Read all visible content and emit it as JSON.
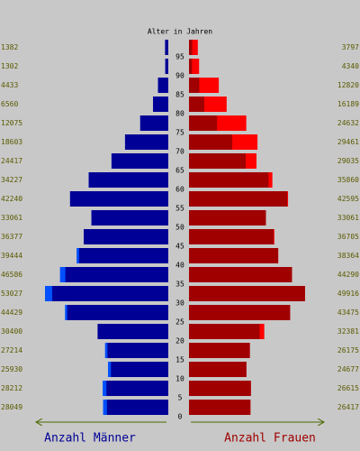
{
  "chart_data": {
    "type": "pyramid",
    "title": "Alter in Jahren",
    "ylim": [
      0,
      100
    ],
    "yticks": [
      0,
      5,
      10,
      15,
      20,
      25,
      30,
      35,
      40,
      45,
      50,
      55,
      60,
      65,
      70,
      75,
      80,
      85,
      90,
      95
    ],
    "xlim": [
      0,
      60000
    ],
    "series": [
      {
        "name": "Anzahl Männer",
        "color": "#000096",
        "excess_color": "#0050ff",
        "values": [
          28049,
          28212,
          25930,
          27214,
          30400,
          44429,
          53027,
          46586,
          39444,
          36377,
          33061,
          42240,
          34227,
          24417,
          18603,
          12075,
          6560,
          4433,
          1302,
          1382
        ]
      },
      {
        "name": "Anzahl Frauen",
        "color": "#a00000",
        "excess_color": "#ff0000",
        "values": [
          26417,
          26615,
          24677,
          26175,
          32381,
          43475,
          49916,
          44290,
          38364,
          36705,
          33061,
          42595,
          35860,
          29035,
          29461,
          24632,
          16189,
          12820,
          4340,
          3797
        ]
      }
    ]
  }
}
